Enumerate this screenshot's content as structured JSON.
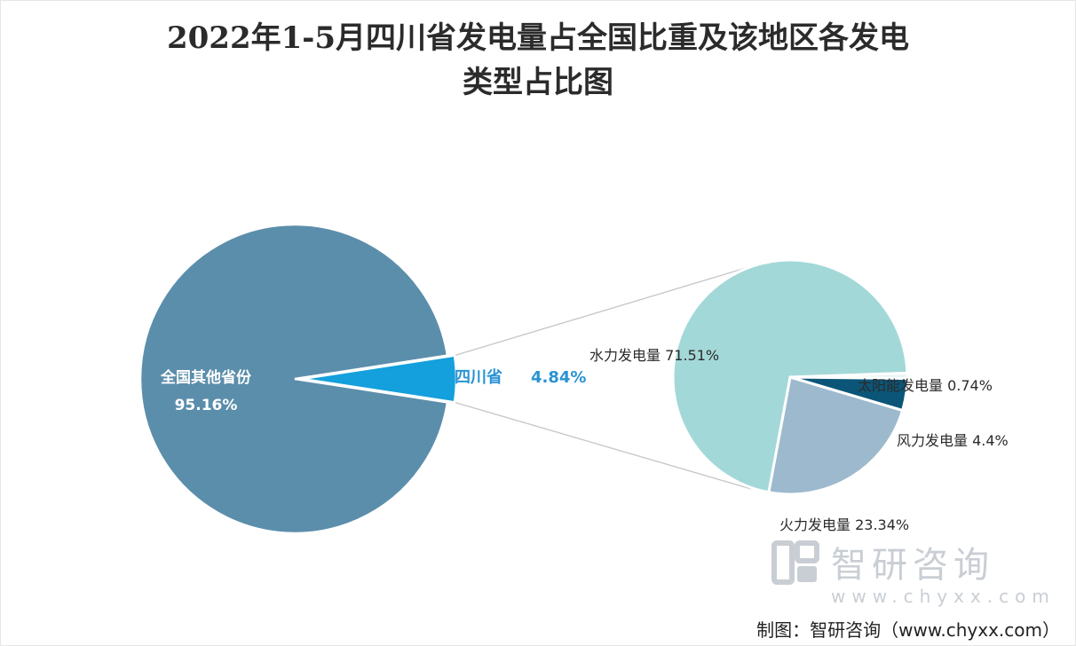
{
  "title_lines": [
    "2022年1-5月四川省发电量占全国比重及该地区各发电",
    "类型占比图"
  ],
  "colors": {
    "other_provinces": "#5b8eab",
    "sichuan": "#14a0dc",
    "hydro": "#a3d8d8",
    "thermal": "#9db9cd",
    "wind": "#0b5678",
    "solar": "#e7f4f4",
    "connector": "#c6c6c6"
  },
  "chart_data": [
    {
      "type": "pie",
      "slices": [
        {
          "name": "全国其他省份",
          "value": 95.16,
          "label_value": "95.16%"
        },
        {
          "name": "四川省",
          "value": 4.84,
          "label_value": "4.84%"
        }
      ]
    },
    {
      "type": "pie",
      "slices": [
        {
          "name": "水力发电量",
          "value": 71.51,
          "label": "水力发电量 71.51%"
        },
        {
          "name": "火力发电量",
          "value": 23.34,
          "label": "火力发电量 23.34%"
        },
        {
          "name": "风力发电量",
          "value": 4.4,
          "label": "风力发电量 4.4%"
        },
        {
          "name": "太阳能发电量",
          "value": 0.74,
          "label": "太阳能发电量 0.74%"
        }
      ]
    }
  ],
  "watermark": {
    "brand": "智研咨询",
    "url": "www.chyxx.com"
  },
  "footer": "制图：智研咨询（www.chyxx.com）"
}
